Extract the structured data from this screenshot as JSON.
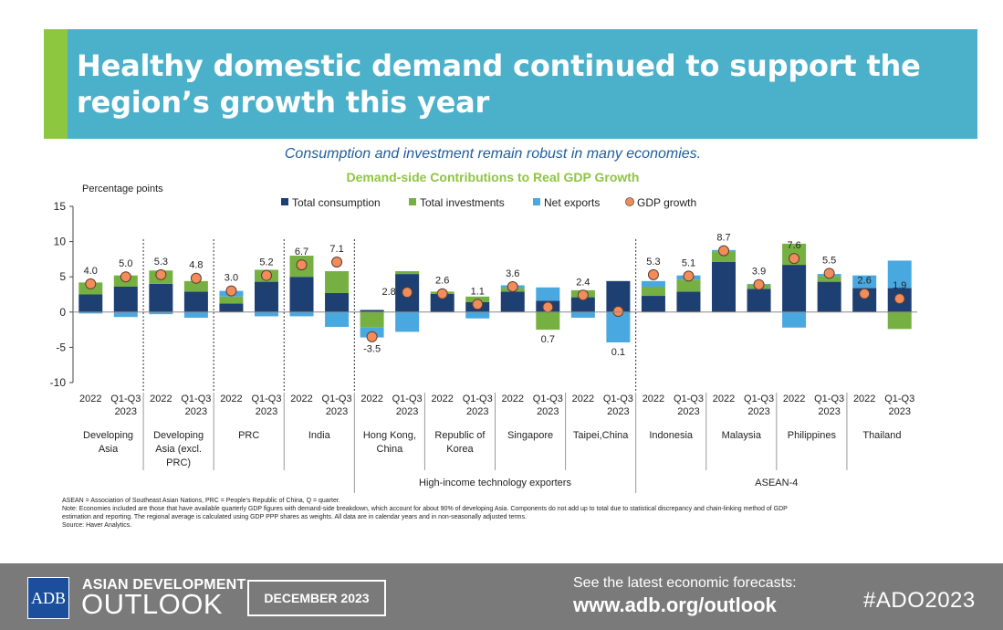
{
  "header": {
    "title": "Healthy domestic demand continued to support the region’s growth this year"
  },
  "subtitle": "Consumption and investment remain robust in many economies.",
  "chart_data": {
    "type": "bar",
    "title": "Demand-side Contributions to Real GDP Growth",
    "ylabel": "Percentage points",
    "ylim": [
      -10,
      15
    ],
    "yticks": [
      15,
      10,
      5,
      0,
      -5,
      -10
    ],
    "legend": [
      "Total consumption",
      "Total investments",
      "Net exports",
      "GDP growth"
    ],
    "colors": {
      "consumption": "#1d3f72",
      "investment": "#76b043",
      "netexports": "#4aa8e0",
      "gdp": "#f28c5a"
    },
    "groups": [
      {
        "name": "Developing Asia",
        "bars": [
          {
            "period": "2022",
            "consumption": 2.5,
            "investment": 1.7,
            "netexports": -0.2,
            "gdp": 4.0,
            "label": "4.0"
          },
          {
            "period": "Q1-Q3 2023",
            "consumption": 3.6,
            "investment": 1.6,
            "netexports": -0.7,
            "gdp": 5.0,
            "label": "5.0"
          }
        ]
      },
      {
        "name": "Developing Asia (excl. PRC)",
        "bars": [
          {
            "period": "2022",
            "consumption": 4.0,
            "investment": 1.9,
            "netexports": -0.3,
            "gdp": 5.3,
            "label": "5.3"
          },
          {
            "period": "Q1-Q3 2023",
            "consumption": 2.9,
            "investment": 1.5,
            "netexports": -0.8,
            "gdp": 4.8,
            "label": "4.8"
          }
        ]
      },
      {
        "name": "PRC",
        "bars": [
          {
            "period": "2022",
            "consumption": 1.2,
            "investment": 1.0,
            "netexports": 0.8,
            "gdp": 3.0,
            "label": "3.0"
          },
          {
            "period": "Q1-Q3 2023",
            "consumption": 4.3,
            "investment": 1.7,
            "netexports": -0.6,
            "gdp": 5.2,
            "label": "5.2"
          }
        ]
      },
      {
        "name": "India",
        "bars": [
          {
            "period": "2022",
            "consumption": 5.0,
            "investment": 3.0,
            "netexports": -0.6,
            "gdp": 6.7,
            "label": "6.7"
          },
          {
            "period": "Q1-Q3 2023",
            "consumption": 2.7,
            "investment": 3.1,
            "netexports": -2.1,
            "gdp": 7.1,
            "label": "7.1"
          }
        ]
      },
      {
        "name": "Hong Kong, China",
        "bars": [
          {
            "period": "2022",
            "consumption": 0.3,
            "investment": -2.2,
            "netexports": -1.4,
            "gdp": -3.5,
            "label": "-3.5"
          },
          {
            "period": "Q1-Q3 2023",
            "consumption": 5.4,
            "investment": 0.4,
            "netexports": -2.8,
            "gdp": 2.8,
            "label": "2.8"
          }
        ]
      },
      {
        "name": "Republic of Korea",
        "bars": [
          {
            "period": "2022",
            "consumption": 2.6,
            "investment": 0.3,
            "netexports": 0.0,
            "gdp": 2.6,
            "label": "2.6"
          },
          {
            "period": "Q1-Q3 2023",
            "consumption": 1.4,
            "investment": 0.8,
            "netexports": -0.9,
            "gdp": 1.1,
            "label": "1.1"
          }
        ]
      },
      {
        "name": "Singapore",
        "bars": [
          {
            "period": "2022",
            "consumption": 2.9,
            "investment": 0.5,
            "netexports": 0.4,
            "gdp": 3.6,
            "label": "3.6"
          },
          {
            "period": "Q1-Q3 2023",
            "consumption": 1.6,
            "investment": -2.5,
            "netexports": 1.9,
            "gdp": 0.7,
            "label": "0.7"
          }
        ]
      },
      {
        "name": "Taipei,China",
        "bars": [
          {
            "period": "2022",
            "consumption": 2.1,
            "investment": 1.0,
            "netexports": -0.8,
            "gdp": 2.4,
            "label": "2.4"
          },
          {
            "period": "Q1-Q3 2023",
            "consumption": 4.4,
            "investment": 0.0,
            "netexports": -4.3,
            "gdp": 0.1,
            "label": "0.1"
          }
        ]
      },
      {
        "name": "Indonesia",
        "bars": [
          {
            "period": "2022",
            "consumption": 2.3,
            "investment": 1.3,
            "netexports": 0.8,
            "gdp": 5.3,
            "label": "5.3"
          },
          {
            "period": "Q1-Q3 2023",
            "consumption": 2.9,
            "investment": 1.7,
            "netexports": 0.6,
            "gdp": 5.1,
            "label": "5.1"
          }
        ]
      },
      {
        "name": "Malaysia",
        "bars": [
          {
            "period": "2022",
            "consumption": 7.1,
            "investment": 1.5,
            "netexports": 0.2,
            "gdp": 8.7,
            "label": "8.7"
          },
          {
            "period": "Q1-Q3 2023",
            "consumption": 3.3,
            "investment": 0.6,
            "netexports": 0.1,
            "gdp": 3.9,
            "label": "3.9"
          }
        ]
      },
      {
        "name": "Philippines",
        "bars": [
          {
            "period": "2022",
            "consumption": 6.7,
            "investment": 3.0,
            "netexports": -2.2,
            "gdp": 7.6,
            "label": "7.6"
          },
          {
            "period": "Q1-Q3 2023",
            "consumption": 4.3,
            "investment": 0.8,
            "netexports": 0.3,
            "gdp": 5.5,
            "label": "5.5"
          }
        ]
      },
      {
        "name": "Thailand",
        "bars": [
          {
            "period": "2022",
            "consumption": 3.4,
            "investment": 0.0,
            "netexports": 1.8,
            "gdp": 2.6,
            "label": "2.6"
          },
          {
            "period": "Q1-Q3 2023",
            "consumption": 3.4,
            "investment": -2.4,
            "netexports": 3.9,
            "gdp": 1.9,
            "label": "1.9"
          }
        ]
      }
    ],
    "category_groups": [
      {
        "name": "High-income technology exporters",
        "first": 4,
        "last": 7
      },
      {
        "name": "ASEAN-4",
        "first": 8,
        "last": 11
      }
    ]
  },
  "notes": [
    "ASEAN = Association of Southeast Asian Nations, PRC = People’s Republic of China, Q = quarter.",
    "Note: Economies included are those that have available quarterly GDP figures with demand-side breakdown, which account for about 90% of developing Asia. Components do not add up to total due to statistical discrepancy and chain-linking method of GDP estimation and reporting. The regional average is calculated using GDP PPP shares as weights. All data are in calendar years and in non-seasonally adjusted terms.",
    "Source: Haver Analytics."
  ],
  "footer": {
    "logo": "ADB",
    "brand_line1": "ASIAN DEVELOPMENT",
    "brand_line2": "OUTLOOK",
    "date": "DECEMBER 2023",
    "see_text": "See the latest economic forecasts:",
    "url": "www.adb.org/outlook",
    "hashtag": "#ADO2023"
  }
}
